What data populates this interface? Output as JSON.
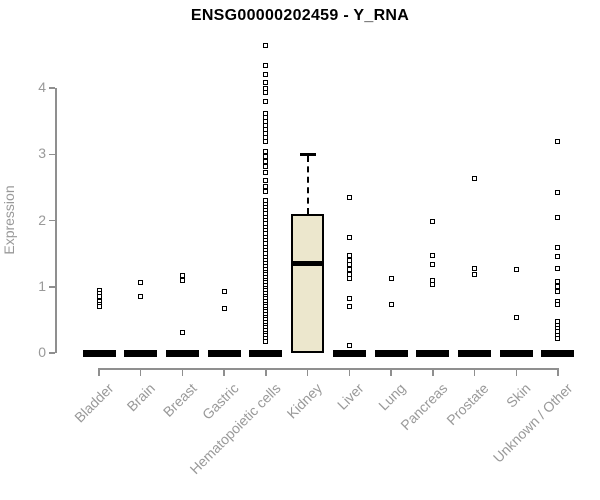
{
  "chart_data": {
    "type": "boxplot",
    "title": "ENSG00000202459 - Y_RNA",
    "xlabel": "",
    "ylabel": "Expression",
    "ylim": [
      0,
      4.8
    ],
    "yticks": [
      0,
      1,
      2,
      3,
      4
    ],
    "grid": false,
    "legend": "none",
    "categories": [
      "Bladder",
      "Brain",
      "Breast",
      "Gastric",
      "Hematopoietic cells",
      "Kidney",
      "Liver",
      "Lung",
      "Pancreas",
      "Prostate",
      "Skin",
      "Unknown / Other"
    ],
    "boxes": [
      {
        "category": "Bladder",
        "q1": 0,
        "median": 0,
        "q3": 0,
        "whisker_low": 0,
        "whisker_high": 0,
        "points": [
          0.95,
          0.9,
          0.86,
          0.78,
          0.74,
          0.7
        ]
      },
      {
        "category": "Brain",
        "q1": 0,
        "median": 0,
        "q3": 0,
        "whisker_low": 0,
        "whisker_high": 0,
        "points": [
          1.07,
          0.86
        ]
      },
      {
        "category": "Breast",
        "q1": 0,
        "median": 0,
        "q3": 0,
        "whisker_low": 0,
        "whisker_high": 0,
        "points": [
          1.17,
          1.1,
          0.31
        ]
      },
      {
        "category": "Gastric",
        "q1": 0,
        "median": 0,
        "q3": 0,
        "whisker_low": 0,
        "whisker_high": 0,
        "points": [
          0.93,
          0.67
        ]
      },
      {
        "category": "Hematopoietic cells",
        "q1": 0,
        "median": 0,
        "q3": 0,
        "whisker_low": 0,
        "whisker_high": 0,
        "points": [
          4.65,
          4.35,
          4.2,
          4.08,
          4.0,
          3.93,
          3.8,
          3.62,
          3.56,
          3.5,
          3.44,
          3.38,
          3.32,
          3.26,
          3.2,
          3.05,
          2.97,
          2.89,
          2.81,
          2.73,
          2.6,
          2.52,
          2.44,
          2.3,
          2.25,
          2.2,
          2.15,
          2.1,
          2.05,
          2.0,
          1.95,
          1.9,
          1.85,
          1.8,
          1.75,
          1.7,
          1.65,
          1.6,
          1.55,
          1.5,
          1.45,
          1.4,
          1.35,
          1.3,
          1.26,
          1.22,
          1.18,
          1.14,
          1.1,
          1.06,
          1.02,
          0.98,
          0.94,
          0.9,
          0.86,
          0.82,
          0.78,
          0.74,
          0.7,
          0.66,
          0.62,
          0.58,
          0.54,
          0.5,
          0.46,
          0.42,
          0.38,
          0.34,
          0.3,
          0.26,
          0.22,
          0.18
        ]
      },
      {
        "category": "Kidney",
        "q1": 0,
        "median": 1.35,
        "q3": 2.1,
        "whisker_low": 0,
        "whisker_high": 3.0,
        "points": []
      },
      {
        "category": "Liver",
        "q1": 0,
        "median": 0,
        "q3": 0,
        "whisker_low": 0,
        "whisker_high": 0,
        "points": [
          2.35,
          1.74,
          1.47,
          1.4,
          1.33,
          1.26,
          1.19,
          1.12,
          0.83,
          0.7,
          0.12
        ]
      },
      {
        "category": "Lung",
        "q1": 0,
        "median": 0,
        "q3": 0,
        "whisker_low": 0,
        "whisker_high": 0,
        "points": [
          1.12,
          0.73
        ]
      },
      {
        "category": "Pancreas",
        "q1": 0,
        "median": 0,
        "q3": 0,
        "whisker_low": 0,
        "whisker_high": 0,
        "points": [
          1.98,
          1.47,
          1.33,
          1.1,
          1.04
        ]
      },
      {
        "category": "Prostate",
        "q1": 0,
        "median": 0,
        "q3": 0,
        "whisker_low": 0,
        "whisker_high": 0,
        "points": [
          2.63,
          1.27,
          1.19
        ]
      },
      {
        "category": "Skin",
        "q1": 0,
        "median": 0,
        "q3": 0,
        "whisker_low": 0,
        "whisker_high": 0,
        "points": [
          1.26,
          0.53
        ]
      },
      {
        "category": "Unknown / Other",
        "q1": 0,
        "median": 0,
        "q3": 0,
        "whisker_low": 0,
        "whisker_high": 0,
        "points": [
          3.2,
          2.43,
          2.04,
          1.6,
          1.46,
          1.28,
          1.08,
          1.0,
          0.93,
          0.78,
          0.74,
          0.47,
          0.42,
          0.37,
          0.32,
          0.27,
          0.22
        ]
      }
    ],
    "style": {
      "box_fill": "#ece7cd",
      "box_border": "#000000",
      "median_color": "#000000",
      "point_color": "#000000",
      "axis_color": "#8f8f8f",
      "axis_text_color": "#999999",
      "title_color": "#000000"
    }
  }
}
